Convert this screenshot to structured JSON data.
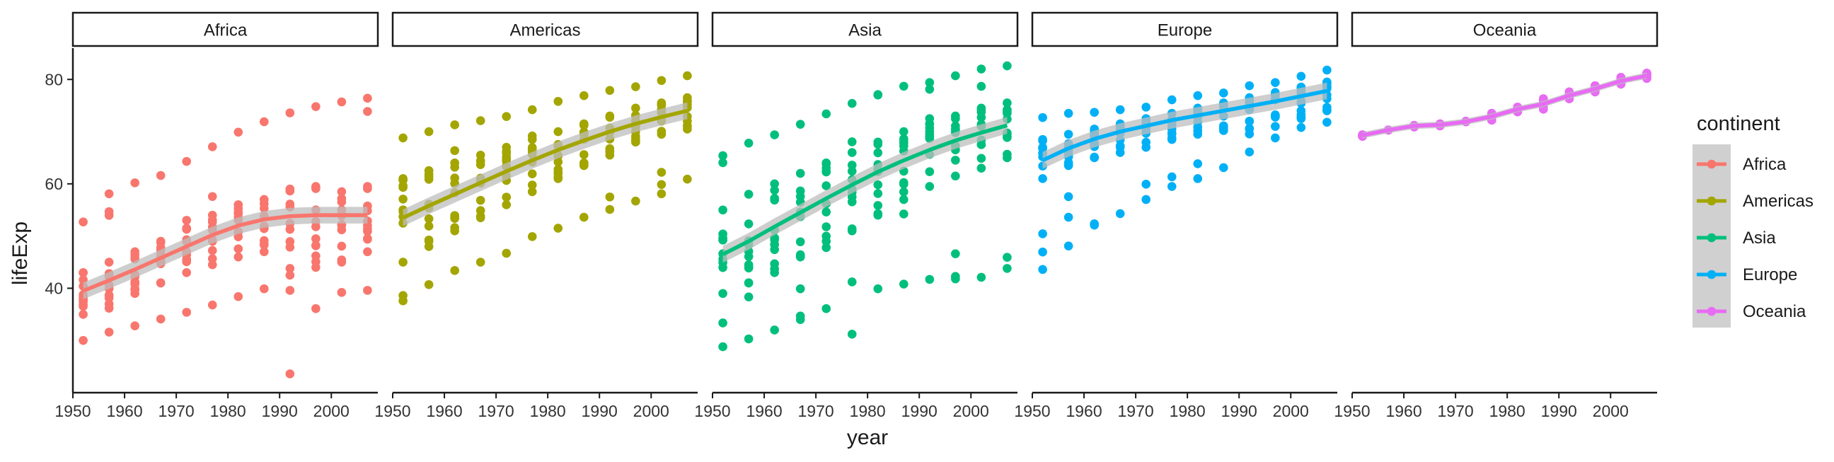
{
  "chart_data": {
    "type": "scatter",
    "title": "",
    "xlabel": "year",
    "ylabel": "lifeExp",
    "xlim": [
      1950,
      2009
    ],
    "ylim": [
      20,
      86
    ],
    "x_ticks": [
      1950,
      1960,
      1970,
      1980,
      1990,
      2000
    ],
    "y_ticks": [
      40,
      60,
      80
    ],
    "grid": false,
    "smooth": "loess trend line with grey confidence band",
    "legend": {
      "title": "continent",
      "placement": "right"
    },
    "colors": {
      "Africa": "#F8766D",
      "Americas": "#A3A500",
      "Asia": "#00BF7D",
      "Europe": "#00B0F6",
      "Oceania": "#E76BF3",
      "band": "#BDBDBD",
      "strip_border": "#1a1a1a",
      "axis": "#1a1a1a"
    },
    "facets": [
      {
        "name": "Africa",
        "points_by_year": [
          {
            "year": 1952,
            "min": 30.0,
            "q1": 35.0,
            "median": 38.8,
            "q3": 43.0,
            "max": 52.7
          },
          {
            "year": 1957,
            "min": 31.6,
            "q1": 37.0,
            "median": 40.6,
            "q3": 45.0,
            "max": 58.1
          },
          {
            "year": 1962,
            "min": 32.8,
            "q1": 39.0,
            "median": 42.6,
            "q3": 47.0,
            "max": 60.2
          },
          {
            "year": 1967,
            "min": 34.1,
            "q1": 41.0,
            "median": 44.7,
            "q3": 49.0,
            "max": 61.6
          },
          {
            "year": 1972,
            "min": 35.4,
            "q1": 43.0,
            "median": 47.0,
            "q3": 51.5,
            "max": 64.3
          },
          {
            "year": 1977,
            "min": 36.8,
            "q1": 44.5,
            "median": 49.3,
            "q3": 54.0,
            "max": 67.1
          },
          {
            "year": 1982,
            "min": 38.4,
            "q1": 46.0,
            "median": 50.8,
            "q3": 56.0,
            "max": 69.9
          },
          {
            "year": 1987,
            "min": 39.9,
            "q1": 47.0,
            "median": 51.6,
            "q3": 57.0,
            "max": 71.9
          },
          {
            "year": 1992,
            "min": 23.6,
            "q1": 42.5,
            "median": 52.4,
            "q3": 59.0,
            "max": 73.6
          },
          {
            "year": 1997,
            "min": 36.1,
            "q1": 44.0,
            "median": 52.8,
            "q3": 59.5,
            "max": 74.8
          },
          {
            "year": 2002,
            "min": 39.2,
            "q1": 45.0,
            "median": 51.2,
            "q3": 58.5,
            "max": 75.7
          },
          {
            "year": 2007,
            "min": 39.6,
            "q1": 47.0,
            "median": 52.9,
            "q3": 59.5,
            "max": 76.4
          }
        ],
        "trend": [
          {
            "year": 1952,
            "lifeExp": 39.5
          },
          {
            "year": 1957,
            "lifeExp": 41.5
          },
          {
            "year": 1962,
            "lifeExp": 43.6
          },
          {
            "year": 1967,
            "lifeExp": 45.8
          },
          {
            "year": 1972,
            "lifeExp": 48.0
          },
          {
            "year": 1977,
            "lifeExp": 50.2
          },
          {
            "year": 1982,
            "lifeExp": 52.0
          },
          {
            "year": 1987,
            "lifeExp": 53.2
          },
          {
            "year": 1992,
            "lifeExp": 53.8
          },
          {
            "year": 1997,
            "lifeExp": 54.0
          },
          {
            "year": 2002,
            "lifeExp": 54.0
          },
          {
            "year": 2007,
            "lifeExp": 54.0
          }
        ]
      },
      {
        "name": "Americas",
        "points_by_year": [
          {
            "year": 1952,
            "min": 37.6,
            "q1": 45.0,
            "median": 54.7,
            "q3": 61.0,
            "max": 68.8
          },
          {
            "year": 1957,
            "min": 40.7,
            "q1": 48.0,
            "median": 56.1,
            "q3": 62.5,
            "max": 70.0
          },
          {
            "year": 1962,
            "min": 43.4,
            "q1": 51.0,
            "median": 58.3,
            "q3": 64.0,
            "max": 71.3
          },
          {
            "year": 1967,
            "min": 45.0,
            "q1": 53.5,
            "median": 60.5,
            "q3": 65.5,
            "max": 72.1
          },
          {
            "year": 1972,
            "min": 46.7,
            "q1": 56.0,
            "median": 63.4,
            "q3": 67.0,
            "max": 72.9
          },
          {
            "year": 1977,
            "min": 49.9,
            "q1": 58.5,
            "median": 66.4,
            "q3": 68.5,
            "max": 74.2
          },
          {
            "year": 1982,
            "min": 51.5,
            "q1": 61.0,
            "median": 67.4,
            "q3": 70.0,
            "max": 75.8
          },
          {
            "year": 1987,
            "min": 53.6,
            "q1": 63.5,
            "median": 69.5,
            "q3": 71.5,
            "max": 76.9
          },
          {
            "year": 1992,
            "min": 55.1,
            "q1": 65.5,
            "median": 69.9,
            "q3": 73.0,
            "max": 77.9
          },
          {
            "year": 1997,
            "min": 56.7,
            "q1": 68.0,
            "median": 72.1,
            "q3": 74.5,
            "max": 78.6
          },
          {
            "year": 2002,
            "min": 58.1,
            "q1": 69.5,
            "median": 72.0,
            "q3": 75.5,
            "max": 79.8
          },
          {
            "year": 2007,
            "min": 60.9,
            "q1": 71.0,
            "median": 72.9,
            "q3": 76.5,
            "max": 80.7
          }
        ],
        "trend": [
          {
            "year": 1952,
            "lifeExp": 53.5
          },
          {
            "year": 1957,
            "lifeExp": 55.8
          },
          {
            "year": 1962,
            "lifeExp": 58.0
          },
          {
            "year": 1967,
            "lifeExp": 60.2
          },
          {
            "year": 1972,
            "lifeExp": 62.4
          },
          {
            "year": 1977,
            "lifeExp": 64.5
          },
          {
            "year": 1982,
            "lifeExp": 66.5
          },
          {
            "year": 1987,
            "lifeExp": 68.3
          },
          {
            "year": 1992,
            "lifeExp": 70.0
          },
          {
            "year": 1997,
            "lifeExp": 71.5
          },
          {
            "year": 2002,
            "lifeExp": 72.8
          },
          {
            "year": 2007,
            "lifeExp": 74.0
          }
        ]
      },
      {
        "name": "Asia",
        "points_by_year": [
          {
            "year": 1952,
            "min": 28.8,
            "q1": 39.0,
            "median": 44.9,
            "q3": 55.0,
            "max": 65.4
          },
          {
            "year": 1957,
            "min": 30.3,
            "q1": 41.0,
            "median": 48.3,
            "q3": 58.0,
            "max": 67.8
          },
          {
            "year": 1962,
            "min": 32.0,
            "q1": 43.0,
            "median": 49.3,
            "q3": 60.0,
            "max": 69.4
          },
          {
            "year": 1967,
            "min": 34.0,
            "q1": 46.0,
            "median": 53.7,
            "q3": 62.0,
            "max": 71.4
          },
          {
            "year": 1972,
            "min": 36.1,
            "q1": 49.0,
            "median": 56.2,
            "q3": 64.0,
            "max": 73.4
          },
          {
            "year": 1977,
            "min": 31.2,
            "q1": 51.0,
            "median": 60.8,
            "q3": 66.0,
            "max": 75.4
          },
          {
            "year": 1982,
            "min": 39.9,
            "q1": 54.0,
            "median": 63.7,
            "q3": 68.0,
            "max": 77.1
          },
          {
            "year": 1987,
            "min": 40.8,
            "q1": 57.0,
            "median": 66.3,
            "q3": 70.0,
            "max": 78.7
          },
          {
            "year": 1992,
            "min": 41.7,
            "q1": 59.5,
            "median": 68.7,
            "q3": 71.5,
            "max": 79.4
          },
          {
            "year": 1997,
            "min": 41.8,
            "q1": 61.5,
            "median": 70.3,
            "q3": 73.0,
            "max": 80.7
          },
          {
            "year": 2002,
            "min": 42.1,
            "q1": 63.0,
            "median": 71.0,
            "q3": 74.5,
            "max": 82.0
          },
          {
            "year": 2007,
            "min": 43.8,
            "q1": 65.0,
            "median": 72.4,
            "q3": 75.5,
            "max": 82.6
          }
        ],
        "trend": [
          {
            "year": 1952,
            "lifeExp": 46.5
          },
          {
            "year": 1957,
            "lifeExp": 49.0
          },
          {
            "year": 1962,
            "lifeExp": 51.8
          },
          {
            "year": 1967,
            "lifeExp": 54.5
          },
          {
            "year": 1972,
            "lifeExp": 57.2
          },
          {
            "year": 1977,
            "lifeExp": 59.8
          },
          {
            "year": 1982,
            "lifeExp": 62.3
          },
          {
            "year": 1987,
            "lifeExp": 64.5
          },
          {
            "year": 1992,
            "lifeExp": 66.5
          },
          {
            "year": 1997,
            "lifeExp": 68.3
          },
          {
            "year": 2002,
            "lifeExp": 69.8
          },
          {
            "year": 2007,
            "lifeExp": 71.2
          }
        ]
      },
      {
        "name": "Europe",
        "points_by_year": [
          {
            "year": 1952,
            "min": 43.6,
            "q1": 61.0,
            "median": 65.9,
            "q3": 68.5,
            "max": 72.7
          },
          {
            "year": 1957,
            "min": 48.1,
            "q1": 63.5,
            "median": 67.7,
            "q3": 69.5,
            "max": 73.5
          },
          {
            "year": 1962,
            "min": 52.1,
            "q1": 65.0,
            "median": 69.5,
            "q3": 70.5,
            "max": 73.7
          },
          {
            "year": 1967,
            "min": 54.3,
            "q1": 66.0,
            "median": 70.6,
            "q3": 71.5,
            "max": 74.2
          },
          {
            "year": 1972,
            "min": 57.0,
            "q1": 67.0,
            "median": 70.9,
            "q3": 72.5,
            "max": 74.7
          },
          {
            "year": 1977,
            "min": 59.5,
            "q1": 68.5,
            "median": 72.3,
            "q3": 73.5,
            "max": 76.1
          },
          {
            "year": 1982,
            "min": 61.0,
            "q1": 69.5,
            "median": 73.5,
            "q3": 74.5,
            "max": 76.9
          },
          {
            "year": 1987,
            "min": 63.1,
            "q1": 70.5,
            "median": 74.8,
            "q3": 75.5,
            "max": 77.4
          },
          {
            "year": 1992,
            "min": 66.1,
            "q1": 70.5,
            "median": 75.5,
            "q3": 76.5,
            "max": 78.8
          },
          {
            "year": 1997,
            "min": 68.8,
            "q1": 71.0,
            "median": 76.1,
            "q3": 77.5,
            "max": 79.4
          },
          {
            "year": 2002,
            "min": 70.8,
            "q1": 72.5,
            "median": 77.5,
            "q3": 78.5,
            "max": 80.6
          },
          {
            "year": 2007,
            "min": 71.8,
            "q1": 74.0,
            "median": 78.6,
            "q3": 79.5,
            "max": 81.8
          }
        ],
        "trend": [
          {
            "year": 1952,
            "lifeExp": 64.5
          },
          {
            "year": 1957,
            "lifeExp": 66.8
          },
          {
            "year": 1962,
            "lifeExp": 68.6
          },
          {
            "year": 1967,
            "lifeExp": 70.0
          },
          {
            "year": 1972,
            "lifeExp": 71.1
          },
          {
            "year": 1977,
            "lifeExp": 72.2
          },
          {
            "year": 1982,
            "lifeExp": 73.1
          },
          {
            "year": 1987,
            "lifeExp": 74.0
          },
          {
            "year": 1992,
            "lifeExp": 74.9
          },
          {
            "year": 1997,
            "lifeExp": 75.8
          },
          {
            "year": 2002,
            "lifeExp": 76.8
          },
          {
            "year": 2007,
            "lifeExp": 77.8
          }
        ]
      },
      {
        "name": "Oceania",
        "points_by_year": [
          {
            "year": 1952,
            "min": 69.1,
            "q1": 69.1,
            "median": 69.3,
            "q3": 69.4,
            "max": 69.4
          },
          {
            "year": 1957,
            "min": 70.3,
            "q1": 70.3,
            "median": 70.3,
            "q3": 70.3,
            "max": 70.3
          },
          {
            "year": 1962,
            "min": 70.9,
            "q1": 70.9,
            "median": 71.1,
            "q3": 71.2,
            "max": 71.2
          },
          {
            "year": 1967,
            "min": 71.1,
            "q1": 71.1,
            "median": 71.3,
            "q3": 71.5,
            "max": 71.5
          },
          {
            "year": 1972,
            "min": 71.9,
            "q1": 71.9,
            "median": 71.9,
            "q3": 72.0,
            "max": 72.0
          },
          {
            "year": 1977,
            "min": 72.2,
            "q1": 72.2,
            "median": 72.9,
            "q3": 73.5,
            "max": 73.5
          },
          {
            "year": 1982,
            "min": 73.8,
            "q1": 73.8,
            "median": 74.3,
            "q3": 74.7,
            "max": 74.7
          },
          {
            "year": 1987,
            "min": 74.3,
            "q1": 74.3,
            "median": 75.3,
            "q3": 76.3,
            "max": 76.3
          },
          {
            "year": 1992,
            "min": 76.3,
            "q1": 76.3,
            "median": 76.9,
            "q3": 77.6,
            "max": 77.6
          },
          {
            "year": 1997,
            "min": 77.6,
            "q1": 77.6,
            "median": 78.2,
            "q3": 78.8,
            "max": 78.8
          },
          {
            "year": 2002,
            "min": 79.1,
            "q1": 79.1,
            "median": 79.7,
            "q3": 80.4,
            "max": 80.4
          },
          {
            "year": 2007,
            "min": 80.2,
            "q1": 80.2,
            "median": 80.7,
            "q3": 81.2,
            "max": 81.2
          }
        ],
        "trend": [
          {
            "year": 1952,
            "lifeExp": 69.3
          },
          {
            "year": 1957,
            "lifeExp": 70.3
          },
          {
            "year": 1962,
            "lifeExp": 71.1
          },
          {
            "year": 1967,
            "lifeExp": 71.3
          },
          {
            "year": 1972,
            "lifeExp": 71.9
          },
          {
            "year": 1977,
            "lifeExp": 72.9
          },
          {
            "year": 1982,
            "lifeExp": 74.3
          },
          {
            "year": 1987,
            "lifeExp": 75.3
          },
          {
            "year": 1992,
            "lifeExp": 76.9
          },
          {
            "year": 1997,
            "lifeExp": 78.2
          },
          {
            "year": 2002,
            "lifeExp": 79.7
          },
          {
            "year": 2007,
            "lifeExp": 80.7
          }
        ]
      }
    ]
  }
}
